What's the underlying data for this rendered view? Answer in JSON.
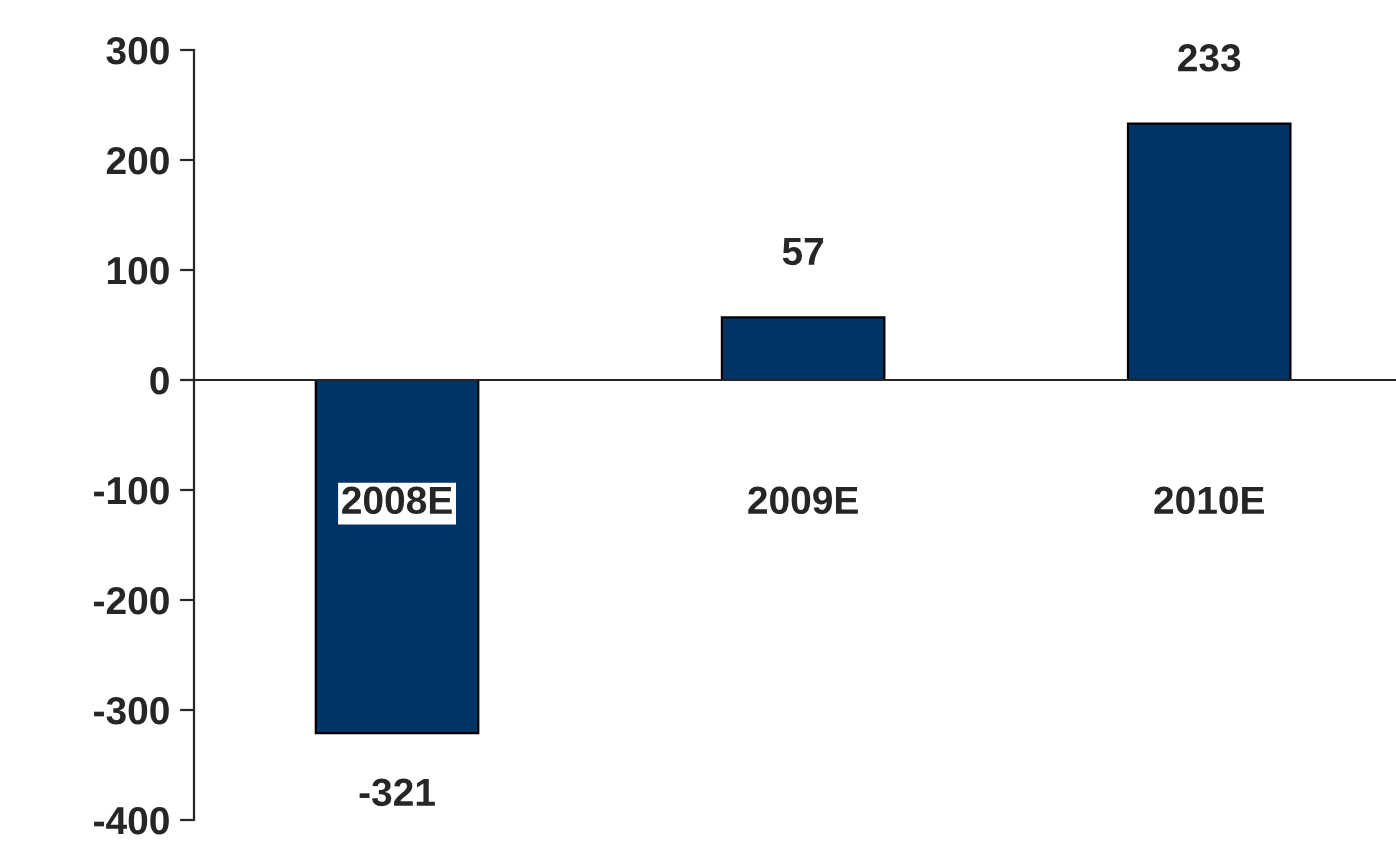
{
  "chart_data": {
    "type": "bar",
    "categories": [
      "2008E",
      "2009E",
      "2010E"
    ],
    "values": [
      -321,
      57,
      233
    ],
    "color": "#003366",
    "ylim": [
      -400,
      300
    ],
    "yticks": [
      -400,
      -300,
      -200,
      -100,
      0,
      100,
      200,
      300
    ],
    "data_labels": true,
    "legend": false
  }
}
